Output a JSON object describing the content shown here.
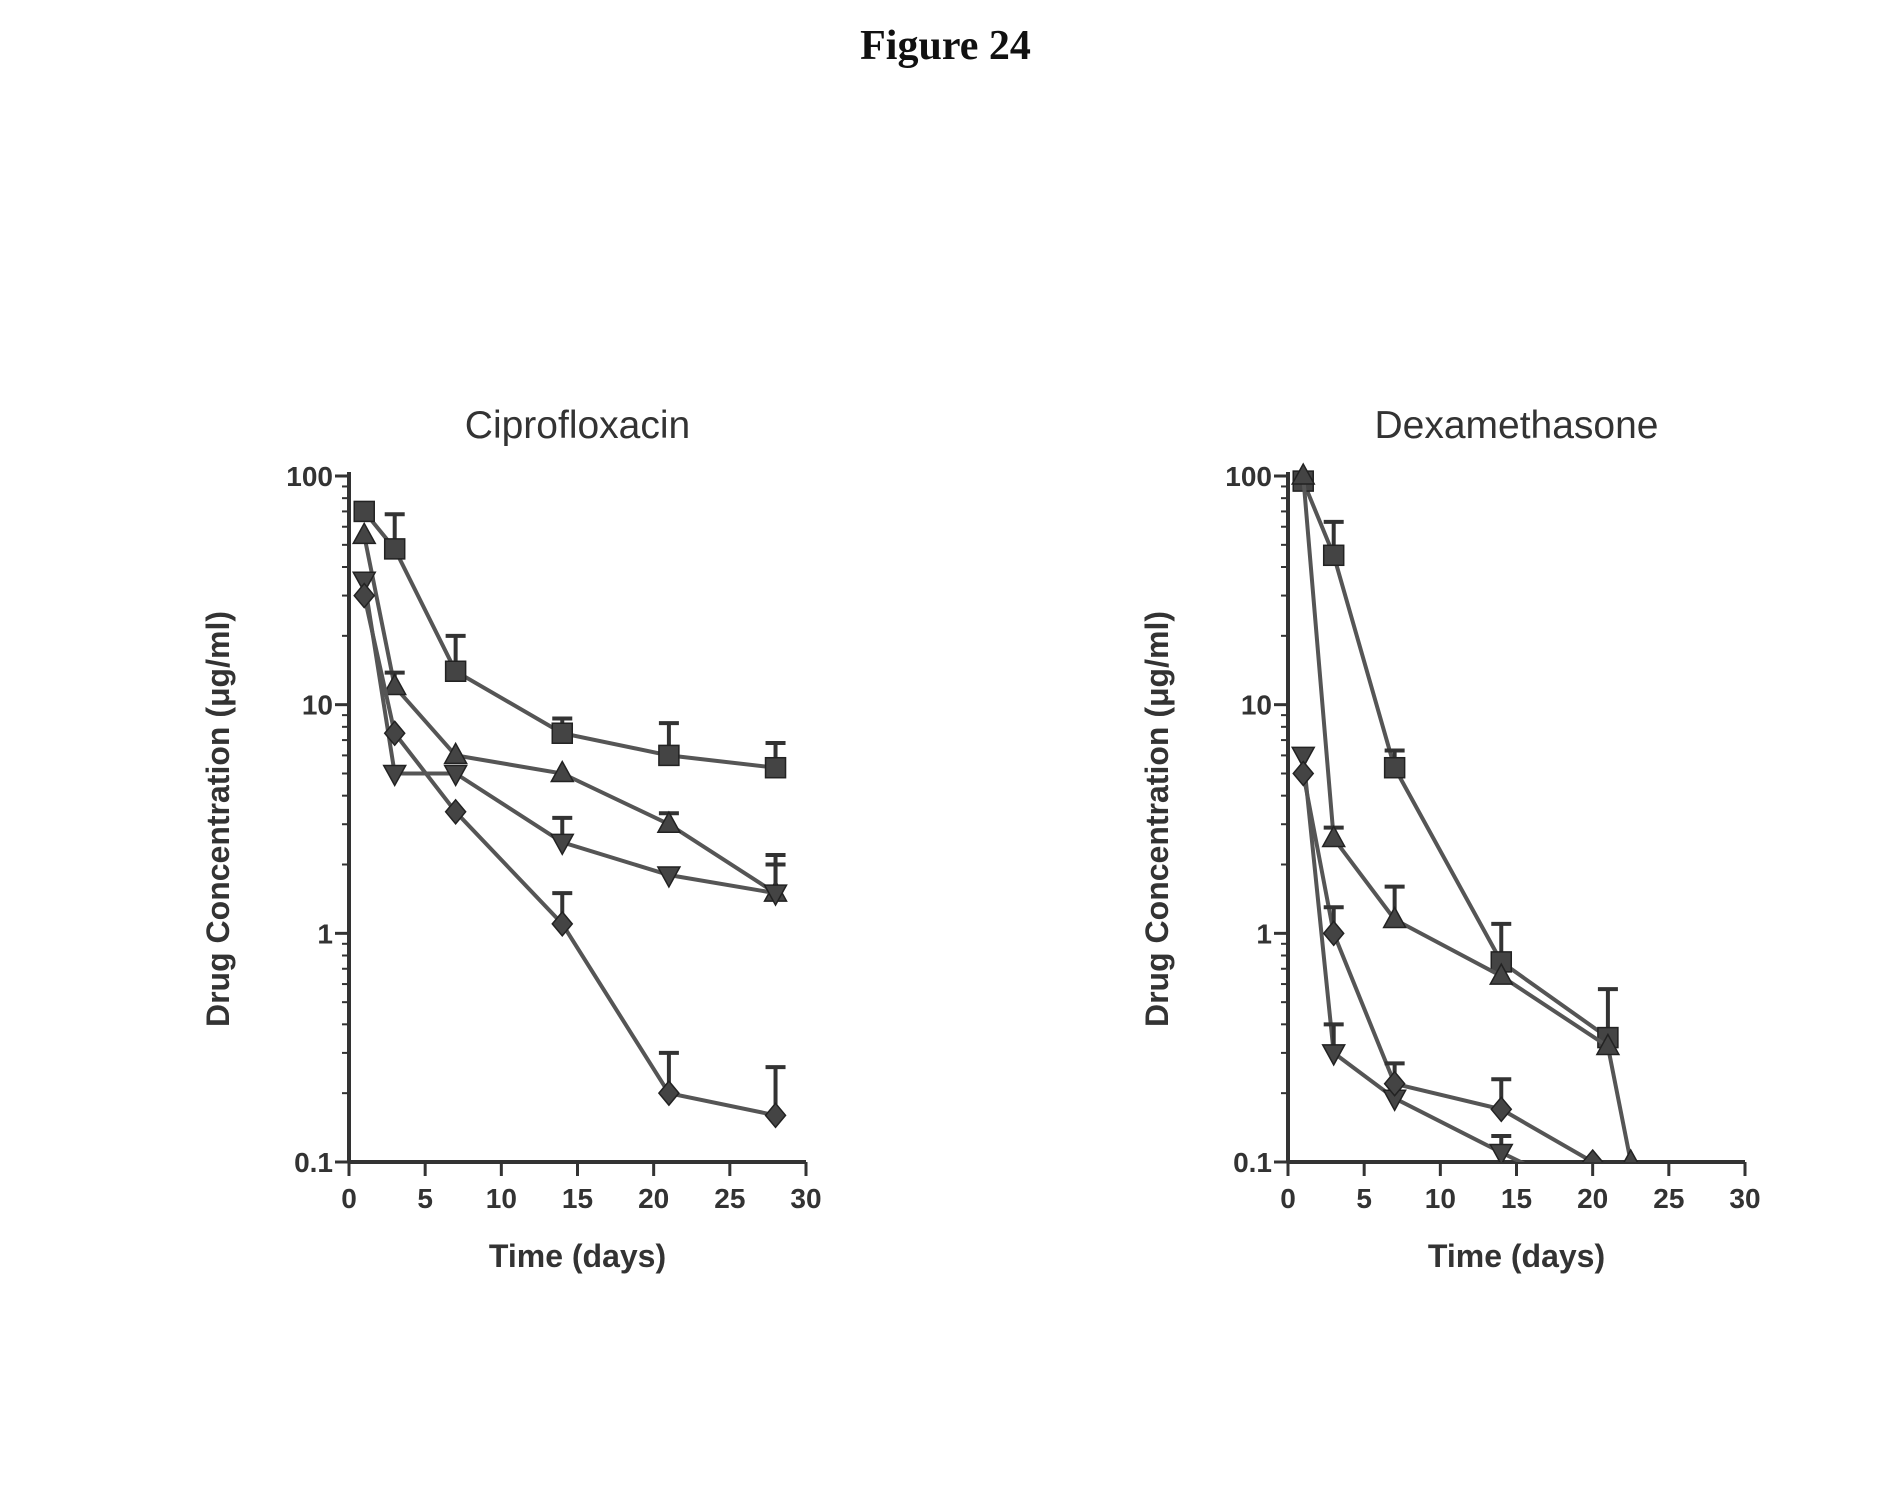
{
  "figure": {
    "title": "Figure 24"
  },
  "chart_data": [
    {
      "type": "line",
      "title": "Ciprofloxacin",
      "xlabel": "Time (days)",
      "ylabel": "Drug Concentration (μg/ml)",
      "xlim": [
        0,
        30
      ],
      "ylim": [
        0.1,
        100
      ],
      "yscale": "log",
      "xticks": [
        "0",
        "5",
        "10",
        "15",
        "20",
        "25",
        "30"
      ],
      "yticks": [
        "0.1",
        "1",
        "10",
        "100"
      ],
      "series": [
        {
          "marker": "square",
          "x": [
            1,
            3,
            7,
            14,
            21,
            28
          ],
          "y": [
            70,
            48,
            14,
            7.5,
            6.0,
            5.3
          ],
          "err": [
            0,
            20,
            6,
            1.2,
            2.3,
            1.5
          ]
        },
        {
          "marker": "triangle",
          "x": [
            1,
            3,
            7,
            14,
            21,
            28
          ],
          "y": [
            55,
            12,
            6.0,
            5.0,
            3.0,
            1.5
          ],
          "err": [
            0,
            1.8,
            0,
            0,
            0.35,
            0.5
          ]
        },
        {
          "marker": "inverted-triangle",
          "x": [
            1,
            3,
            7,
            14,
            21,
            28
          ],
          "y": [
            35,
            5.0,
            5.0,
            2.5,
            1.8,
            1.5
          ],
          "err": [
            0,
            0,
            0,
            0.7,
            0,
            0.7
          ]
        },
        {
          "marker": "diamond",
          "x": [
            1,
            3,
            7,
            14,
            21,
            28
          ],
          "y": [
            30,
            7.5,
            3.4,
            1.1,
            0.2,
            0.16
          ],
          "err": [
            0,
            0,
            0,
            0.4,
            0.1,
            0.1
          ]
        }
      ]
    },
    {
      "type": "line",
      "title": "Dexamethasone",
      "xlabel": "Time (days)",
      "ylabel": "Drug Concentration (μg/ml)",
      "xlim": [
        0,
        30
      ],
      "ylim": [
        0.1,
        100
      ],
      "yscale": "log",
      "xticks": [
        "0",
        "5",
        "10",
        "15",
        "20",
        "25",
        "30"
      ],
      "yticks": [
        "0.1",
        "1",
        "10",
        "100"
      ],
      "series": [
        {
          "marker": "square",
          "x": [
            1,
            3,
            7,
            14,
            21
          ],
          "y": [
            95,
            45,
            5.3,
            0.75,
            0.35
          ],
          "err": [
            0,
            18,
            1.0,
            0.35,
            0.22
          ]
        },
        {
          "marker": "triangle",
          "x": [
            1,
            3,
            7,
            14,
            21,
            22.5
          ],
          "y": [
            100,
            2.6,
            1.15,
            0.65,
            0.32,
            0.1
          ],
          "err": [
            0,
            0.3,
            0.45,
            0,
            0,
            0
          ]
        },
        {
          "marker": "inverted-triangle",
          "x": [
            1,
            3,
            7,
            14,
            20
          ],
          "y": [
            6.0,
            0.3,
            0.19,
            0.11,
            0.07
          ],
          "err": [
            0,
            0.1,
            0,
            0.02,
            0
          ]
        },
        {
          "marker": "diamond",
          "x": [
            1,
            3,
            7,
            14,
            20
          ],
          "y": [
            5.0,
            1.0,
            0.22,
            0.17,
            0.1
          ],
          "err": [
            0,
            0.3,
            0.05,
            0.06,
            0
          ]
        }
      ]
    }
  ]
}
